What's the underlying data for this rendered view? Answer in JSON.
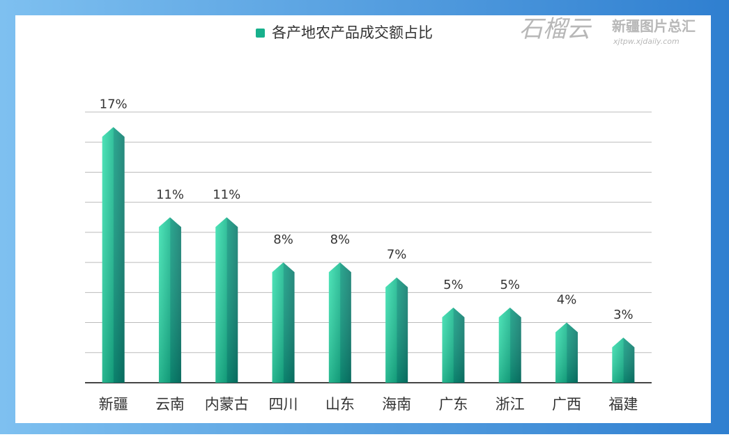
{
  "chart_data": {
    "type": "bar",
    "title": "各产地农产品成交额占比",
    "categories": [
      "新疆",
      "云南",
      "内蒙古",
      "四川",
      "山东",
      "海南",
      "广东",
      "浙江",
      "广西",
      "福建"
    ],
    "values": [
      17,
      11,
      11,
      8,
      8,
      7,
      5,
      5,
      4,
      3
    ],
    "value_labels": [
      "17%",
      "11%",
      "11%",
      "8%",
      "8%",
      "7%",
      "5%",
      "5%",
      "4%",
      "3%"
    ],
    "color": "#13b38f",
    "ylim": [
      0,
      18
    ],
    "yticks": [
      0,
      2,
      4,
      6,
      8,
      10,
      12,
      14,
      16,
      18
    ],
    "grid": true
  },
  "watermark": {
    "logo": "石榴云",
    "name": "新疆图片总汇",
    "url": "xjtpw.xjdaily.com"
  }
}
